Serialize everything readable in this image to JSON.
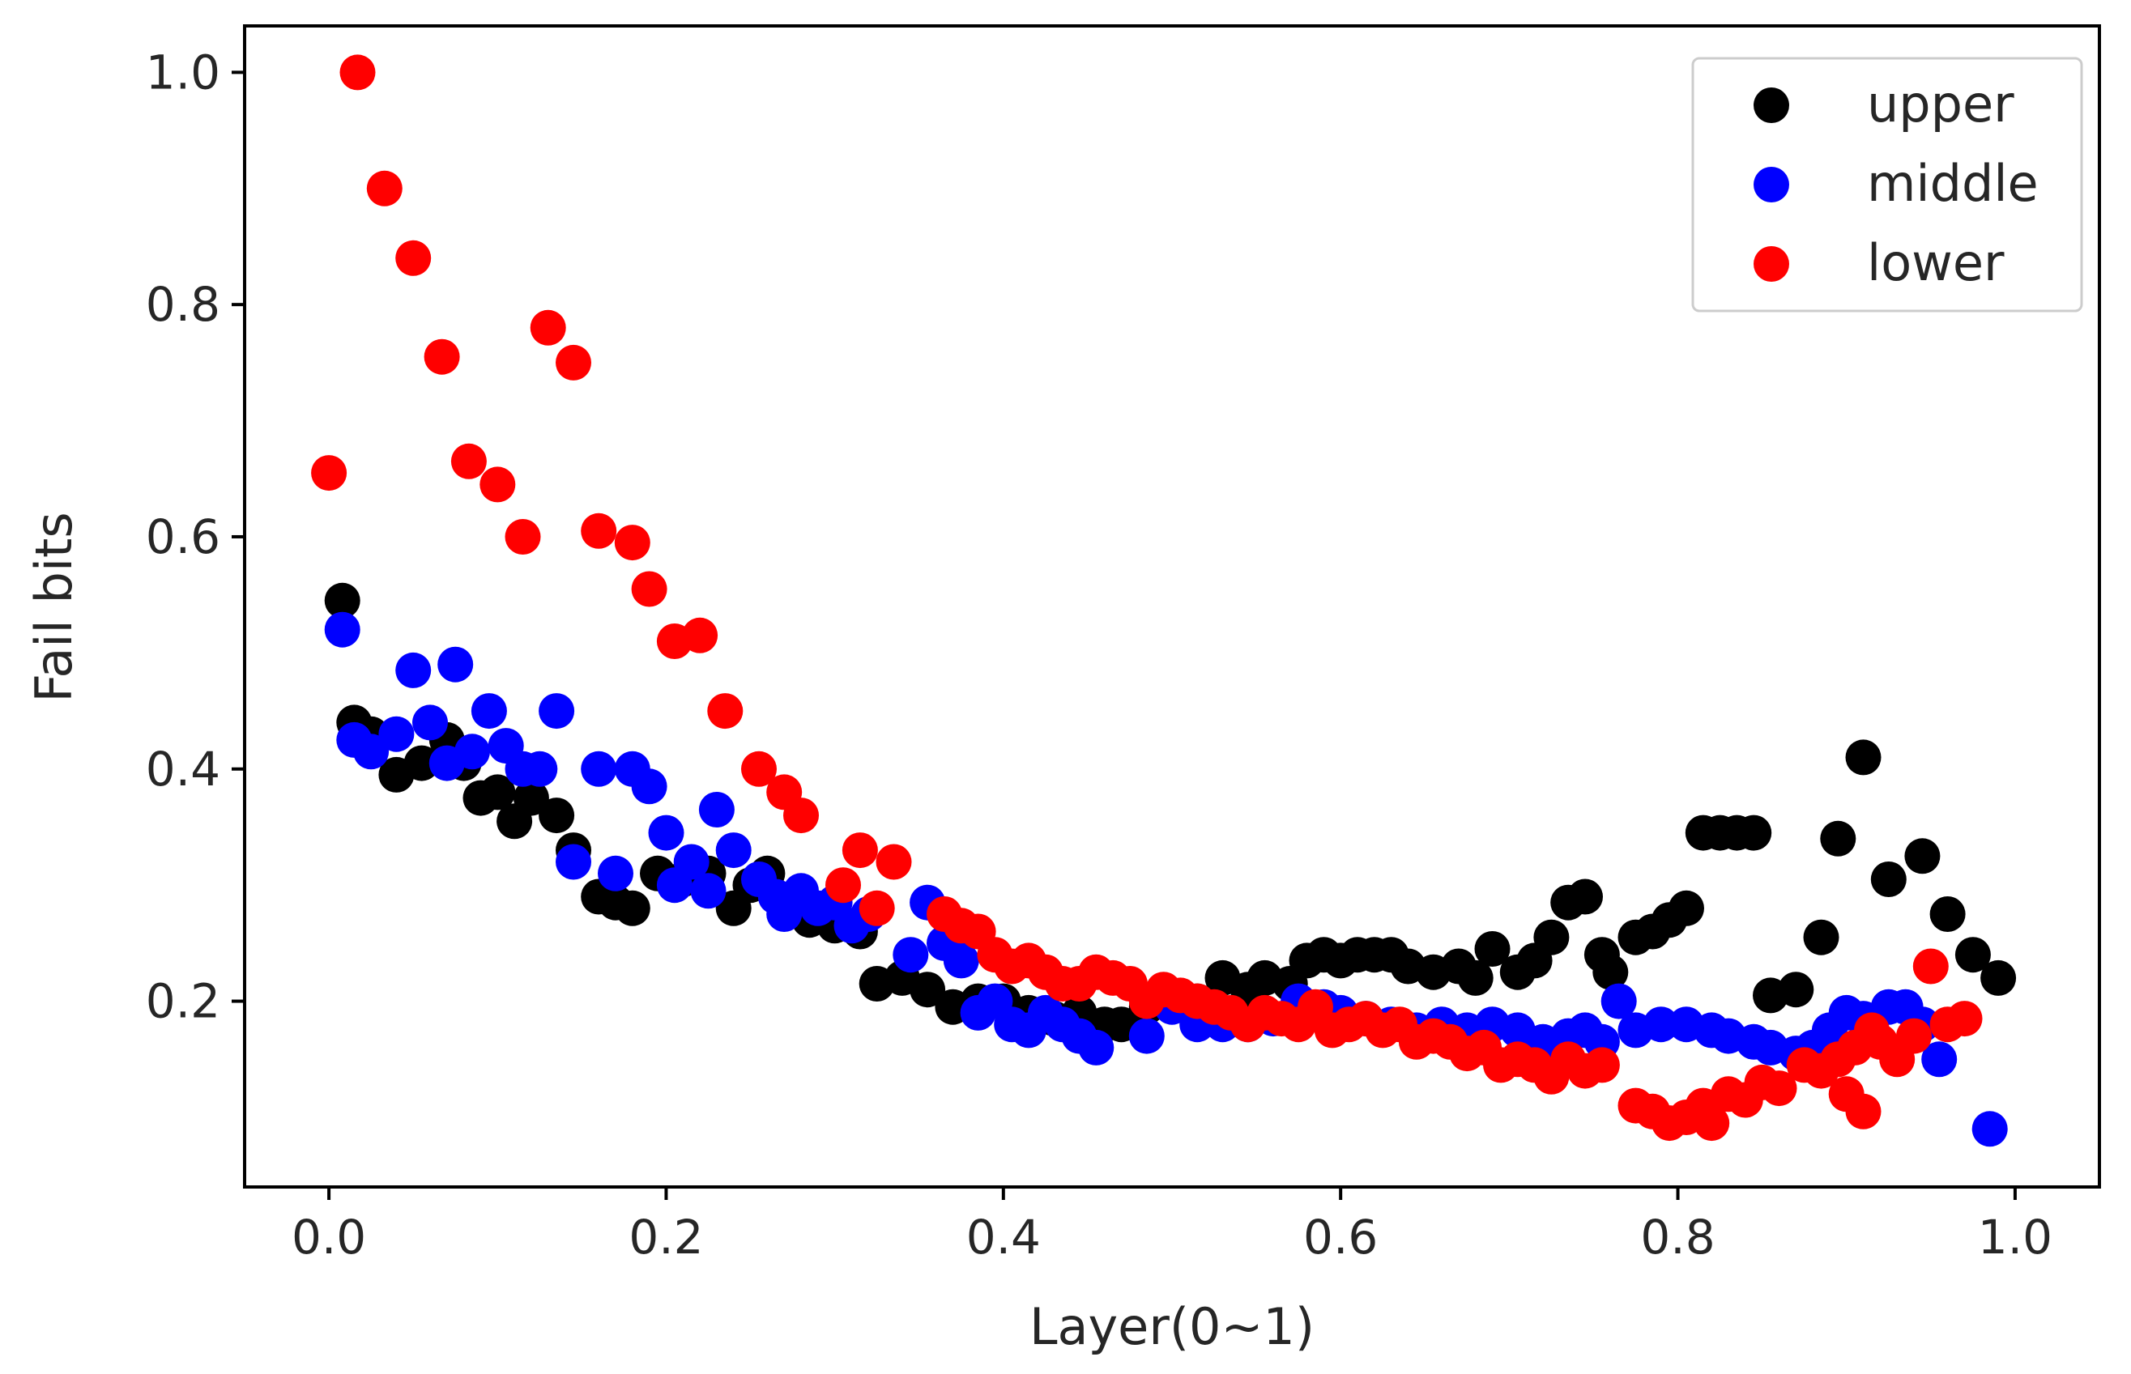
{
  "chart_data": {
    "type": "scatter",
    "title": "",
    "xlabel": "Layer(0~1)",
    "ylabel": "Fail bits",
    "xlim": [
      -0.05,
      1.05
    ],
    "ylim": [
      0.04,
      1.04
    ],
    "xticks": [
      "0.0",
      "0.2",
      "0.4",
      "0.6",
      "0.8",
      "1.0"
    ],
    "yticks": [
      "0.2",
      "0.4",
      "0.6",
      "0.8",
      "1.0"
    ],
    "grid": false,
    "legend_position": "top-right",
    "series": [
      {
        "name": "upper",
        "color": "#000000",
        "points": [
          [
            0.008,
            0.545
          ],
          [
            0.015,
            0.44
          ],
          [
            0.025,
            0.43
          ],
          [
            0.04,
            0.395
          ],
          [
            0.055,
            0.405
          ],
          [
            0.07,
            0.425
          ],
          [
            0.08,
            0.405
          ],
          [
            0.09,
            0.375
          ],
          [
            0.1,
            0.38
          ],
          [
            0.11,
            0.355
          ],
          [
            0.12,
            0.375
          ],
          [
            0.135,
            0.36
          ],
          [
            0.145,
            0.33
          ],
          [
            0.16,
            0.29
          ],
          [
            0.17,
            0.285
          ],
          [
            0.18,
            0.28
          ],
          [
            0.195,
            0.31
          ],
          [
            0.21,
            0.305
          ],
          [
            0.225,
            0.31
          ],
          [
            0.24,
            0.28
          ],
          [
            0.25,
            0.3
          ],
          [
            0.26,
            0.31
          ],
          [
            0.27,
            0.28
          ],
          [
            0.285,
            0.27
          ],
          [
            0.3,
            0.265
          ],
          [
            0.315,
            0.26
          ],
          [
            0.325,
            0.215
          ],
          [
            0.34,
            0.22
          ],
          [
            0.355,
            0.21
          ],
          [
            0.37,
            0.195
          ],
          [
            0.385,
            0.2
          ],
          [
            0.4,
            0.2
          ],
          [
            0.415,
            0.19
          ],
          [
            0.43,
            0.185
          ],
          [
            0.445,
            0.19
          ],
          [
            0.46,
            0.18
          ],
          [
            0.47,
            0.18
          ],
          [
            0.485,
            0.195
          ],
          [
            0.5,
            0.2
          ],
          [
            0.515,
            0.2
          ],
          [
            0.53,
            0.22
          ],
          [
            0.545,
            0.21
          ],
          [
            0.555,
            0.22
          ],
          [
            0.57,
            0.215
          ],
          [
            0.58,
            0.235
          ],
          [
            0.59,
            0.24
          ],
          [
            0.6,
            0.235
          ],
          [
            0.61,
            0.24
          ],
          [
            0.62,
            0.24
          ],
          [
            0.63,
            0.24
          ],
          [
            0.64,
            0.23
          ],
          [
            0.655,
            0.225
          ],
          [
            0.67,
            0.23
          ],
          [
            0.68,
            0.22
          ],
          [
            0.69,
            0.245
          ],
          [
            0.705,
            0.225
          ],
          [
            0.715,
            0.235
          ],
          [
            0.725,
            0.255
          ],
          [
            0.735,
            0.285
          ],
          [
            0.745,
            0.29
          ],
          [
            0.755,
            0.24
          ],
          [
            0.76,
            0.225
          ],
          [
            0.775,
            0.255
          ],
          [
            0.785,
            0.26
          ],
          [
            0.795,
            0.27
          ],
          [
            0.805,
            0.28
          ],
          [
            0.815,
            0.345
          ],
          [
            0.825,
            0.345
          ],
          [
            0.835,
            0.345
          ],
          [
            0.845,
            0.345
          ],
          [
            0.855,
            0.205
          ],
          [
            0.87,
            0.21
          ],
          [
            0.885,
            0.255
          ],
          [
            0.895,
            0.34
          ],
          [
            0.91,
            0.41
          ],
          [
            0.925,
            0.305
          ],
          [
            0.945,
            0.325
          ],
          [
            0.96,
            0.275
          ],
          [
            0.975,
            0.24
          ],
          [
            0.99,
            0.22
          ]
        ]
      },
      {
        "name": "middle",
        "color": "#0000ff",
        "points": [
          [
            0.008,
            0.52
          ],
          [
            0.015,
            0.425
          ],
          [
            0.025,
            0.415
          ],
          [
            0.04,
            0.43
          ],
          [
            0.05,
            0.485
          ],
          [
            0.06,
            0.44
          ],
          [
            0.07,
            0.405
          ],
          [
            0.075,
            0.49
          ],
          [
            0.085,
            0.415
          ],
          [
            0.095,
            0.45
          ],
          [
            0.105,
            0.42
          ],
          [
            0.115,
            0.4
          ],
          [
            0.125,
            0.4
          ],
          [
            0.135,
            0.45
          ],
          [
            0.145,
            0.32
          ],
          [
            0.16,
            0.4
          ],
          [
            0.17,
            0.31
          ],
          [
            0.18,
            0.4
          ],
          [
            0.19,
            0.385
          ],
          [
            0.2,
            0.345
          ],
          [
            0.205,
            0.3
          ],
          [
            0.215,
            0.32
          ],
          [
            0.225,
            0.295
          ],
          [
            0.23,
            0.365
          ],
          [
            0.24,
            0.33
          ],
          [
            0.255,
            0.305
          ],
          [
            0.265,
            0.29
          ],
          [
            0.27,
            0.275
          ],
          [
            0.28,
            0.295
          ],
          [
            0.29,
            0.28
          ],
          [
            0.3,
            0.285
          ],
          [
            0.31,
            0.265
          ],
          [
            0.32,
            0.275
          ],
          [
            0.345,
            0.24
          ],
          [
            0.355,
            0.285
          ],
          [
            0.365,
            0.25
          ],
          [
            0.375,
            0.235
          ],
          [
            0.385,
            0.19
          ],
          [
            0.395,
            0.2
          ],
          [
            0.405,
            0.18
          ],
          [
            0.415,
            0.175
          ],
          [
            0.425,
            0.19
          ],
          [
            0.435,
            0.18
          ],
          [
            0.445,
            0.17
          ],
          [
            0.455,
            0.16
          ],
          [
            0.485,
            0.17
          ],
          [
            0.5,
            0.195
          ],
          [
            0.515,
            0.18
          ],
          [
            0.53,
            0.18
          ],
          [
            0.545,
            0.18
          ],
          [
            0.56,
            0.185
          ],
          [
            0.575,
            0.2
          ],
          [
            0.59,
            0.195
          ],
          [
            0.6,
            0.19
          ],
          [
            0.615,
            0.185
          ],
          [
            0.63,
            0.18
          ],
          [
            0.645,
            0.175
          ],
          [
            0.66,
            0.18
          ],
          [
            0.675,
            0.175
          ],
          [
            0.69,
            0.18
          ],
          [
            0.705,
            0.175
          ],
          [
            0.72,
            0.165
          ],
          [
            0.735,
            0.17
          ],
          [
            0.745,
            0.175
          ],
          [
            0.755,
            0.165
          ],
          [
            0.765,
            0.2
          ],
          [
            0.775,
            0.175
          ],
          [
            0.79,
            0.18
          ],
          [
            0.805,
            0.18
          ],
          [
            0.82,
            0.175
          ],
          [
            0.83,
            0.17
          ],
          [
            0.845,
            0.165
          ],
          [
            0.855,
            0.16
          ],
          [
            0.87,
            0.155
          ],
          [
            0.88,
            0.16
          ],
          [
            0.89,
            0.175
          ],
          [
            0.9,
            0.19
          ],
          [
            0.91,
            0.185
          ],
          [
            0.925,
            0.195
          ],
          [
            0.935,
            0.195
          ],
          [
            0.945,
            0.18
          ],
          [
            0.955,
            0.15
          ],
          [
            0.985,
            0.09
          ]
        ]
      },
      {
        "name": "lower",
        "color": "#ff0000",
        "points": [
          [
            0.0,
            0.655
          ],
          [
            0.017,
            1.0
          ],
          [
            0.033,
            0.9
          ],
          [
            0.05,
            0.84
          ],
          [
            0.067,
            0.755
          ],
          [
            0.083,
            0.665
          ],
          [
            0.1,
            0.645
          ],
          [
            0.115,
            0.6
          ],
          [
            0.13,
            0.78
          ],
          [
            0.145,
            0.75
          ],
          [
            0.16,
            0.605
          ],
          [
            0.18,
            0.595
          ],
          [
            0.19,
            0.555
          ],
          [
            0.205,
            0.51
          ],
          [
            0.22,
            0.515
          ],
          [
            0.235,
            0.45
          ],
          [
            0.255,
            0.4
          ],
          [
            0.27,
            0.38
          ],
          [
            0.28,
            0.36
          ],
          [
            0.305,
            0.3
          ],
          [
            0.315,
            0.33
          ],
          [
            0.325,
            0.28
          ],
          [
            0.335,
            0.32
          ],
          [
            0.365,
            0.275
          ],
          [
            0.375,
            0.265
          ],
          [
            0.385,
            0.26
          ],
          [
            0.395,
            0.24
          ],
          [
            0.405,
            0.23
          ],
          [
            0.415,
            0.235
          ],
          [
            0.425,
            0.225
          ],
          [
            0.435,
            0.215
          ],
          [
            0.445,
            0.215
          ],
          [
            0.455,
            0.225
          ],
          [
            0.465,
            0.22
          ],
          [
            0.475,
            0.215
          ],
          [
            0.485,
            0.2
          ],
          [
            0.495,
            0.21
          ],
          [
            0.505,
            0.205
          ],
          [
            0.515,
            0.2
          ],
          [
            0.525,
            0.195
          ],
          [
            0.535,
            0.19
          ],
          [
            0.545,
            0.18
          ],
          [
            0.555,
            0.19
          ],
          [
            0.565,
            0.185
          ],
          [
            0.575,
            0.18
          ],
          [
            0.585,
            0.195
          ],
          [
            0.595,
            0.175
          ],
          [
            0.605,
            0.18
          ],
          [
            0.615,
            0.185
          ],
          [
            0.625,
            0.175
          ],
          [
            0.635,
            0.18
          ],
          [
            0.645,
            0.165
          ],
          [
            0.655,
            0.17
          ],
          [
            0.665,
            0.165
          ],
          [
            0.675,
            0.155
          ],
          [
            0.685,
            0.16
          ],
          [
            0.695,
            0.145
          ],
          [
            0.705,
            0.15
          ],
          [
            0.715,
            0.145
          ],
          [
            0.725,
            0.135
          ],
          [
            0.735,
            0.15
          ],
          [
            0.745,
            0.14
          ],
          [
            0.755,
            0.145
          ],
          [
            0.775,
            0.11
          ],
          [
            0.785,
            0.105
          ],
          [
            0.795,
            0.095
          ],
          [
            0.805,
            0.1
          ],
          [
            0.815,
            0.11
          ],
          [
            0.82,
            0.095
          ],
          [
            0.83,
            0.12
          ],
          [
            0.84,
            0.115
          ],
          [
            0.85,
            0.13
          ],
          [
            0.86,
            0.125
          ],
          [
            0.875,
            0.145
          ],
          [
            0.885,
            0.14
          ],
          [
            0.895,
            0.15
          ],
          [
            0.905,
            0.16
          ],
          [
            0.915,
            0.175
          ],
          [
            0.92,
            0.165
          ],
          [
            0.93,
            0.15
          ],
          [
            0.94,
            0.17
          ],
          [
            0.95,
            0.23
          ],
          [
            0.96,
            0.18
          ],
          [
            0.97,
            0.185
          ],
          [
            0.9,
            0.12
          ],
          [
            0.91,
            0.105
          ]
        ]
      }
    ]
  }
}
